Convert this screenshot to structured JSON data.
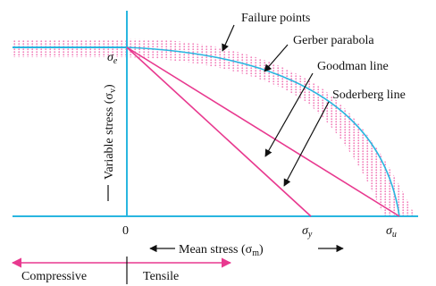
{
  "annotations": {
    "failure_points": "Failure points",
    "gerber": "Gerber parabola",
    "goodman": "Goodman line",
    "soderberg": "Soderberg line"
  },
  "axes": {
    "origin": "0",
    "sigma": "σ",
    "sub_e": "e",
    "sub_y": "y",
    "sub_u": "u",
    "ylabel": "Variable stress (σ",
    "ylabel_sub": "v",
    "ylabel_close": ")",
    "xlabel": "Mean stress (σ",
    "xlabel_sub": "m",
    "xlabel_close": ")"
  },
  "legend": {
    "compressive": "Compressive",
    "tensile": "Tensile"
  },
  "colors": {
    "axis": "#29b6e0",
    "line": "#e8398f",
    "dots": "#f27ab8",
    "ink": "#111111"
  }
}
